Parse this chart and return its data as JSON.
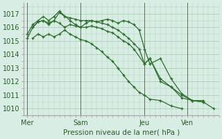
{
  "bg_color": "#d8ede4",
  "grid_color": "#b0ccb8",
  "line_color": "#2d6e2d",
  "marker_color": "#2d6e2d",
  "xlabel": "Pression niveau de la mer( hPa )",
  "ylim": [
    1009.5,
    1017.8
  ],
  "yticks": [
    1010,
    1011,
    1012,
    1013,
    1014,
    1015,
    1016,
    1017
  ],
  "xtick_labels": [
    "Mer",
    "Sam",
    "Jeu",
    "Ven"
  ],
  "xtick_positions": [
    0,
    30,
    66,
    90
  ],
  "vlines": [
    0,
    30,
    66,
    90
  ],
  "xlim": [
    -2,
    108
  ],
  "series": [
    [
      1015.2,
      1016.0,
      1016.4,
      1016.5,
      1016.2,
      1016.5,
      1016.3,
      1016.0,
      1016.2,
      1016.1,
      1016.0,
      1016.0,
      1016.1,
      1016.0,
      1015.9,
      1015.7,
      1015.6,
      1015.3,
      1015.0,
      1014.8,
      1014.4,
      1013.3,
      1013.7,
      1012.2,
      1011.6,
      1011.0,
      1010.6,
      1010.5,
      1010.0
    ],
    [
      1015.5,
      1016.2,
      1016.5,
      1016.8,
      1016.5,
      1016.8,
      1017.2,
      1016.5,
      1016.2,
      1016.0,
      1016.3,
      1016.5,
      1016.4,
      1016.3,
      1016.2,
      1016.0,
      1015.8,
      1015.5,
      1015.2,
      1014.8,
      1014.4,
      1013.3,
      1013.7,
      1012.0,
      1011.6,
      1010.8,
      1010.6,
      1010.5
    ],
    [
      1016.0,
      1016.4,
      1016.5,
      1016.3,
      1016.5,
      1017.1,
      1016.8,
      1016.7,
      1016.6,
      1016.5,
      1016.5,
      1016.5,
      1016.4,
      1016.5,
      1016.6,
      1016.5,
      1016.3,
      1016.5,
      1016.4,
      1016.2,
      1015.8,
      1014.4,
      1013.3,
      1013.7,
      1012.2,
      1011.1,
      1010.6,
      1010.6
    ],
    [
      1015.2,
      1015.5,
      1015.3,
      1015.5,
      1015.3,
      1015.5,
      1015.8,
      1015.5,
      1015.3,
      1015.1,
      1015.0,
      1014.8,
      1014.5,
      1014.2,
      1013.8,
      1013.5,
      1013.0,
      1012.5,
      1012.0,
      1011.6,
      1011.2,
      1011.0,
      1010.7,
      1010.6,
      1010.2,
      1010.0
    ]
  ],
  "series_x": [
    [
      0,
      3,
      6,
      9,
      12,
      15,
      18,
      21,
      24,
      27,
      30,
      33,
      36,
      39,
      42,
      45,
      48,
      51,
      54,
      57,
      60,
      66,
      69,
      75,
      81,
      87,
      93,
      99,
      105
    ],
    [
      0,
      3,
      6,
      9,
      12,
      15,
      18,
      24,
      27,
      30,
      33,
      36,
      39,
      42,
      45,
      48,
      51,
      54,
      57,
      60,
      63,
      66,
      69,
      75,
      81,
      87,
      93,
      99
    ],
    [
      3,
      6,
      9,
      12,
      15,
      18,
      21,
      24,
      27,
      30,
      33,
      36,
      39,
      42,
      45,
      48,
      51,
      54,
      57,
      60,
      63,
      66,
      69,
      75,
      81,
      87,
      93,
      99
    ],
    [
      3,
      6,
      9,
      12,
      15,
      18,
      21,
      24,
      27,
      30,
      33,
      36,
      39,
      42,
      45,
      48,
      51,
      54,
      57,
      60,
      63,
      66,
      69,
      75,
      81,
      87
    ]
  ]
}
